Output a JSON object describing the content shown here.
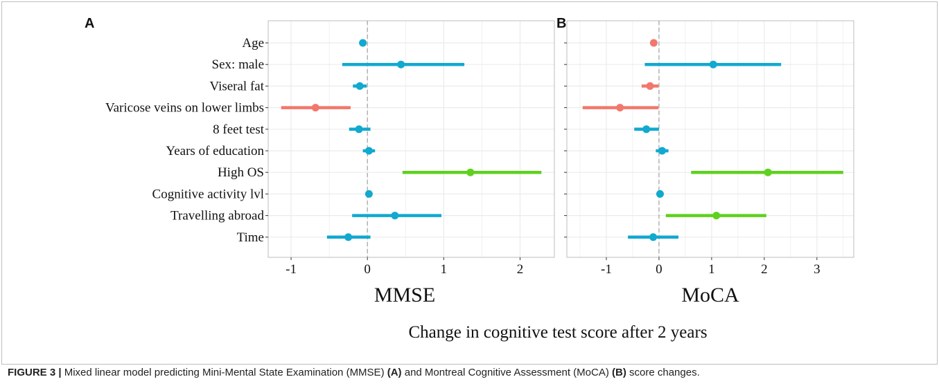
{
  "chart_data": [
    {
      "type": "forest",
      "panel_label": "A",
      "xlabel": "MMSE",
      "xlim": [
        -1.3,
        2.45
      ],
      "xticks": [
        -1,
        0,
        1,
        2
      ],
      "xtick_labels": [
        "-1",
        "0",
        "1",
        "2"
      ],
      "reference_line": 0,
      "grid": true,
      "categories": [
        "Age",
        "Sex: male",
        "Viseral fat",
        "Varicose veins on lower limbs",
        "8 feet test",
        "Years of education",
        "High OS",
        "Cognitive activity lvl",
        "Travelling abroad",
        "Time"
      ],
      "estimates": [
        -0.06,
        0.44,
        -0.1,
        -0.68,
        -0.11,
        0.02,
        1.35,
        0.02,
        0.36,
        -0.25
      ],
      "ci_low": [
        -0.06,
        -0.33,
        -0.19,
        -1.13,
        -0.24,
        -0.06,
        0.46,
        0.02,
        -0.2,
        -0.53
      ],
      "ci_high": [
        -0.06,
        1.27,
        -0.01,
        -0.22,
        0.04,
        0.1,
        2.28,
        0.02,
        0.97,
        0.04
      ],
      "groups": [
        "neutral",
        "neutral",
        "neutral",
        "negative",
        "neutral",
        "neutral",
        "positive",
        "neutral",
        "neutral",
        "neutral"
      ]
    },
    {
      "type": "forest",
      "panel_label": "B",
      "xlabel": "MoCA",
      "xlim": [
        -1.75,
        3.7
      ],
      "xticks": [
        -1,
        0,
        1,
        2,
        3
      ],
      "xtick_labels": [
        "-1",
        "0",
        "1",
        "2",
        "3"
      ],
      "reference_line": 0,
      "grid": true,
      "categories": [
        "Age",
        "Sex: male",
        "Viseral fat",
        "Varicose veins on lower limbs",
        "8 feet test",
        "Years of education",
        "High OS",
        "Cognitive activity lvl",
        "Travelling abroad",
        "Time"
      ],
      "estimates": [
        -0.1,
        1.03,
        -0.17,
        -0.74,
        -0.24,
        0.06,
        2.07,
        0.02,
        1.09,
        -0.11
      ],
      "ci_low": [
        -0.14,
        -0.27,
        -0.33,
        -1.45,
        -0.47,
        -0.06,
        0.61,
        0.02,
        0.13,
        -0.59
      ],
      "ci_high": [
        -0.05,
        2.32,
        -0.01,
        -0.01,
        0.0,
        0.18,
        3.5,
        0.02,
        2.04,
        0.37
      ],
      "groups": [
        "negative",
        "neutral",
        "negative",
        "negative",
        "neutral",
        "neutral",
        "positive",
        "neutral",
        "positive",
        "neutral"
      ]
    }
  ],
  "colors": {
    "negative": "#f2776d",
    "neutral": "#11a9d0",
    "positive": "#5fd11e",
    "grid": "#ebebeb",
    "panel_border": "#bdbdbd",
    "zero_line": "#a0a0a0"
  },
  "overall_xlabel": "Change in cognitive test score after 2 years",
  "caption": {
    "figure_label": "FIGURE 3 |",
    "text1": " Mixed linear model predicting Mini-Mental State Examination (MMSE) ",
    "label_a": "(A)",
    "text2": " and Montreal Cognitive Assessment (MoCA) ",
    "label_b": "(B)",
    "text3": " score changes."
  }
}
